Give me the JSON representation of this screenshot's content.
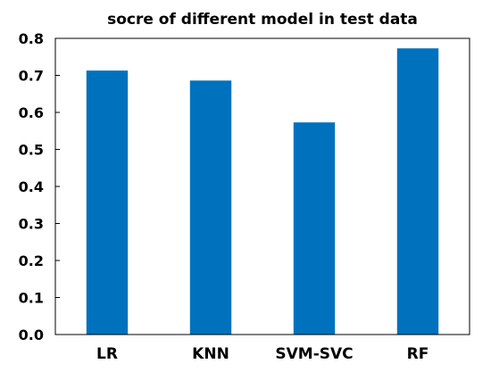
{
  "chart_data": {
    "type": "bar",
    "title": "socre of different model in test data",
    "xlabel": "",
    "ylabel": "",
    "categories": [
      "LR",
      "KNN",
      "SVM-SVC",
      "RF"
    ],
    "values": [
      0.713,
      0.686,
      0.573,
      0.773
    ],
    "ylim": [
      0.0,
      0.8
    ],
    "yticks": [
      "0.0",
      "0.1",
      "0.2",
      "0.3",
      "0.4",
      "0.5",
      "0.6",
      "0.7",
      "0.8"
    ],
    "grid": false,
    "legend": "none",
    "bar_color": "#0072BD"
  }
}
